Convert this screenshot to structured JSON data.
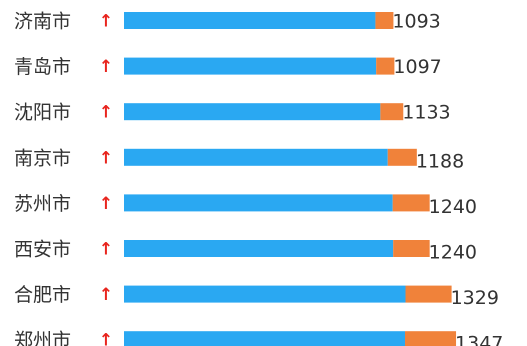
{
  "chart_data": {
    "type": "bar",
    "orientation": "horizontal",
    "stacked": true,
    "categories": [
      "济南市",
      "青岛市",
      "沈阳市",
      "南京市",
      "苏州市",
      "西安市",
      "合肥市",
      "郑州市"
    ],
    "values": [
      1093,
      1097,
      1133,
      1188,
      1240,
      1240,
      1329,
      1347
    ],
    "value_labels": [
      "1093",
      "1097",
      "1133",
      "1188",
      "1240",
      "1240",
      "1329",
      "1347"
    ],
    "trend_symbol": "↑",
    "series": [
      {
        "color": "#2AA8F2",
        "values": [
          1020,
          1023,
          1040,
          1070,
          1090,
          1092,
          1142,
          1140
        ]
      },
      {
        "color": "#F0823A",
        "values": [
          73,
          74,
          93,
          118,
          150,
          148,
          187,
          207
        ]
      }
    ],
    "arrow_color": "#E8251E",
    "grid": false,
    "legend": "none"
  }
}
